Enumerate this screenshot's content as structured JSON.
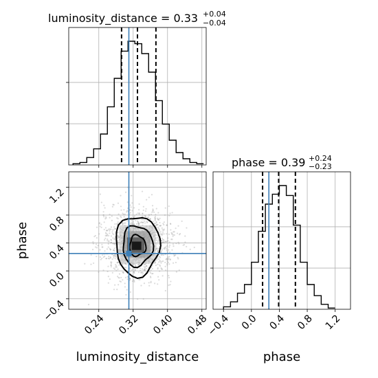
{
  "chart_data": {
    "type": "corner",
    "parameters": [
      "luminosity_distance",
      "phase"
    ],
    "truths": {
      "luminosity_distance": 0.31,
      "phase": 0.25
    },
    "colors": {
      "truth": "#3c7fb8",
      "hist": "#000000",
      "grid": "#b0b0b0"
    },
    "panels": {
      "hist_luminosity_distance": {
        "title_main": "luminosity_distance = 0.33",
        "title_sup": "+0.04",
        "title_sub": "−0.04",
        "xlim": [
          0.17,
          0.49
        ],
        "quantiles": [
          0.293,
          0.33,
          0.373
        ],
        "bin_edges": [
          0.18,
          0.196,
          0.212,
          0.228,
          0.244,
          0.26,
          0.276,
          0.292,
          0.308,
          0.324,
          0.34,
          0.356,
          0.372,
          0.388,
          0.404,
          0.42,
          0.436,
          0.452,
          0.468,
          0.484
        ],
        "counts": [
          1,
          2,
          6,
          13,
          25,
          47,
          70,
          92,
          100,
          98,
          90,
          75,
          52,
          33,
          20,
          10,
          5,
          2,
          1
        ]
      },
      "hist_phase": {
        "title_main": "phase = 0.39",
        "title_sup": "+0.24",
        "title_sub": "−0.23",
        "xlim": [
          -0.55,
          1.42
        ],
        "xticks": [
          "−0.4",
          "0.0",
          "0.4",
          "0.8",
          "1.2"
        ],
        "xlabel": "phase",
        "quantiles": [
          0.16,
          0.39,
          0.63
        ],
        "bin_edges": [
          -0.4,
          -0.3,
          -0.2,
          -0.1,
          0.0,
          0.1,
          0.2,
          0.3,
          0.4,
          0.5,
          0.6,
          0.7,
          0.8,
          0.9,
          1.0,
          1.1,
          1.2
        ],
        "counts": [
          2,
          6,
          13,
          20,
          38,
          63,
          85,
          93,
          100,
          92,
          68,
          38,
          20,
          11,
          4,
          1
        ]
      },
      "scatter_2d": {
        "xlabel": "luminosity_distance",
        "ylabel": "phase",
        "xlim": [
          0.17,
          0.49
        ],
        "ylim": [
          -0.55,
          1.42
        ],
        "xticks": [
          "0.24",
          "0.32",
          "0.40",
          "0.48"
        ],
        "yticks": [
          "−0.4",
          "0.0",
          "0.4",
          "0.8",
          "1.2"
        ],
        "center": [
          0.33,
          0.38
        ],
        "sigma": [
          0.04,
          0.235
        ]
      }
    }
  }
}
